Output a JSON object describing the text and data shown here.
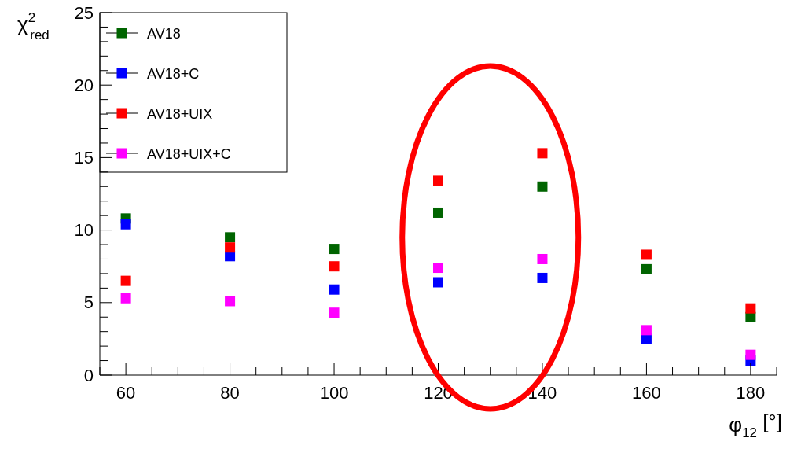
{
  "chart_data": {
    "type": "scatter",
    "xlabel": "φ$_{12}$ [°]",
    "ylabel": "χ$^{2}$$_{red}$",
    "x": [
      60,
      80,
      100,
      120,
      140,
      160,
      180
    ],
    "xlim": [
      55,
      185
    ],
    "xticks": [
      {
        "value": 55,
        "label": null
      },
      60,
      {
        "value": 65,
        "label": null
      },
      {
        "value": 70,
        "label": null
      },
      {
        "value": 75,
        "label": null
      },
      80,
      {
        "value": 85,
        "label": null
      },
      {
        "value": 90,
        "label": null
      },
      {
        "value": 95,
        "label": null
      },
      100,
      {
        "value": 105,
        "label": null
      },
      {
        "value": 110,
        "label": null
      },
      {
        "value": 115,
        "label": null
      },
      120,
      {
        "value": 125,
        "label": null
      },
      {
        "value": 130,
        "label": null
      },
      {
        "value": 135,
        "label": null
      },
      140,
      {
        "value": 145,
        "label": null
      },
      {
        "value": 150,
        "label": null
      },
      {
        "value": 155,
        "label": null
      },
      160,
      {
        "value": 165,
        "label": null
      },
      {
        "value": 170,
        "label": null
      },
      {
        "value": 175,
        "label": null
      },
      180,
      {
        "value": 185,
        "label": null
      }
    ],
    "ylim": [
      0,
      25
    ],
    "yticks": [
      0,
      {
        "value": 1,
        "label": null
      },
      {
        "value": 2,
        "label": null
      },
      {
        "value": 3,
        "label": null
      },
      {
        "value": 4,
        "label": null
      },
      5,
      {
        "value": 6,
        "label": null
      },
      {
        "value": 7,
        "label": null
      },
      {
        "value": 8,
        "label": null
      },
      {
        "value": 9,
        "label": null
      },
      10,
      {
        "value": 11,
        "label": null
      },
      {
        "value": 12,
        "label": null
      },
      {
        "value": 13,
        "label": null
      },
      {
        "value": 14,
        "label": null
      },
      15,
      {
        "value": 16,
        "label": null
      },
      {
        "value": 17,
        "label": null
      },
      {
        "value": 18,
        "label": null
      },
      {
        "value": 19,
        "label": null
      },
      20,
      {
        "value": 21,
        "label": null
      },
      {
        "value": 22,
        "label": null
      },
      {
        "value": 23,
        "label": null
      },
      {
        "value": 24,
        "label": null
      },
      25
    ],
    "grid": false,
    "legend": "top left",
    "marker": "square",
    "series": [
      {
        "name": "AV18",
        "color": "#006400",
        "values": [
          10.8,
          9.5,
          8.7,
          11.2,
          13.0,
          7.3,
          4.0
        ]
      },
      {
        "name": "AV18+C",
        "color": "#0000ff",
        "values": [
          10.4,
          8.2,
          5.9,
          6.4,
          6.7,
          2.5,
          1.0
        ]
      },
      {
        "name": "AV18+UIX",
        "color": "#ff0000",
        "values": [
          6.5,
          8.8,
          7.5,
          13.4,
          15.3,
          8.3,
          4.6
        ]
      },
      {
        "name": "AV18+UIX+C",
        "color": "#ff00ff",
        "values": [
          5.3,
          5.1,
          4.3,
          7.4,
          8.0,
          3.1,
          1.4
        ]
      }
    ]
  }
}
